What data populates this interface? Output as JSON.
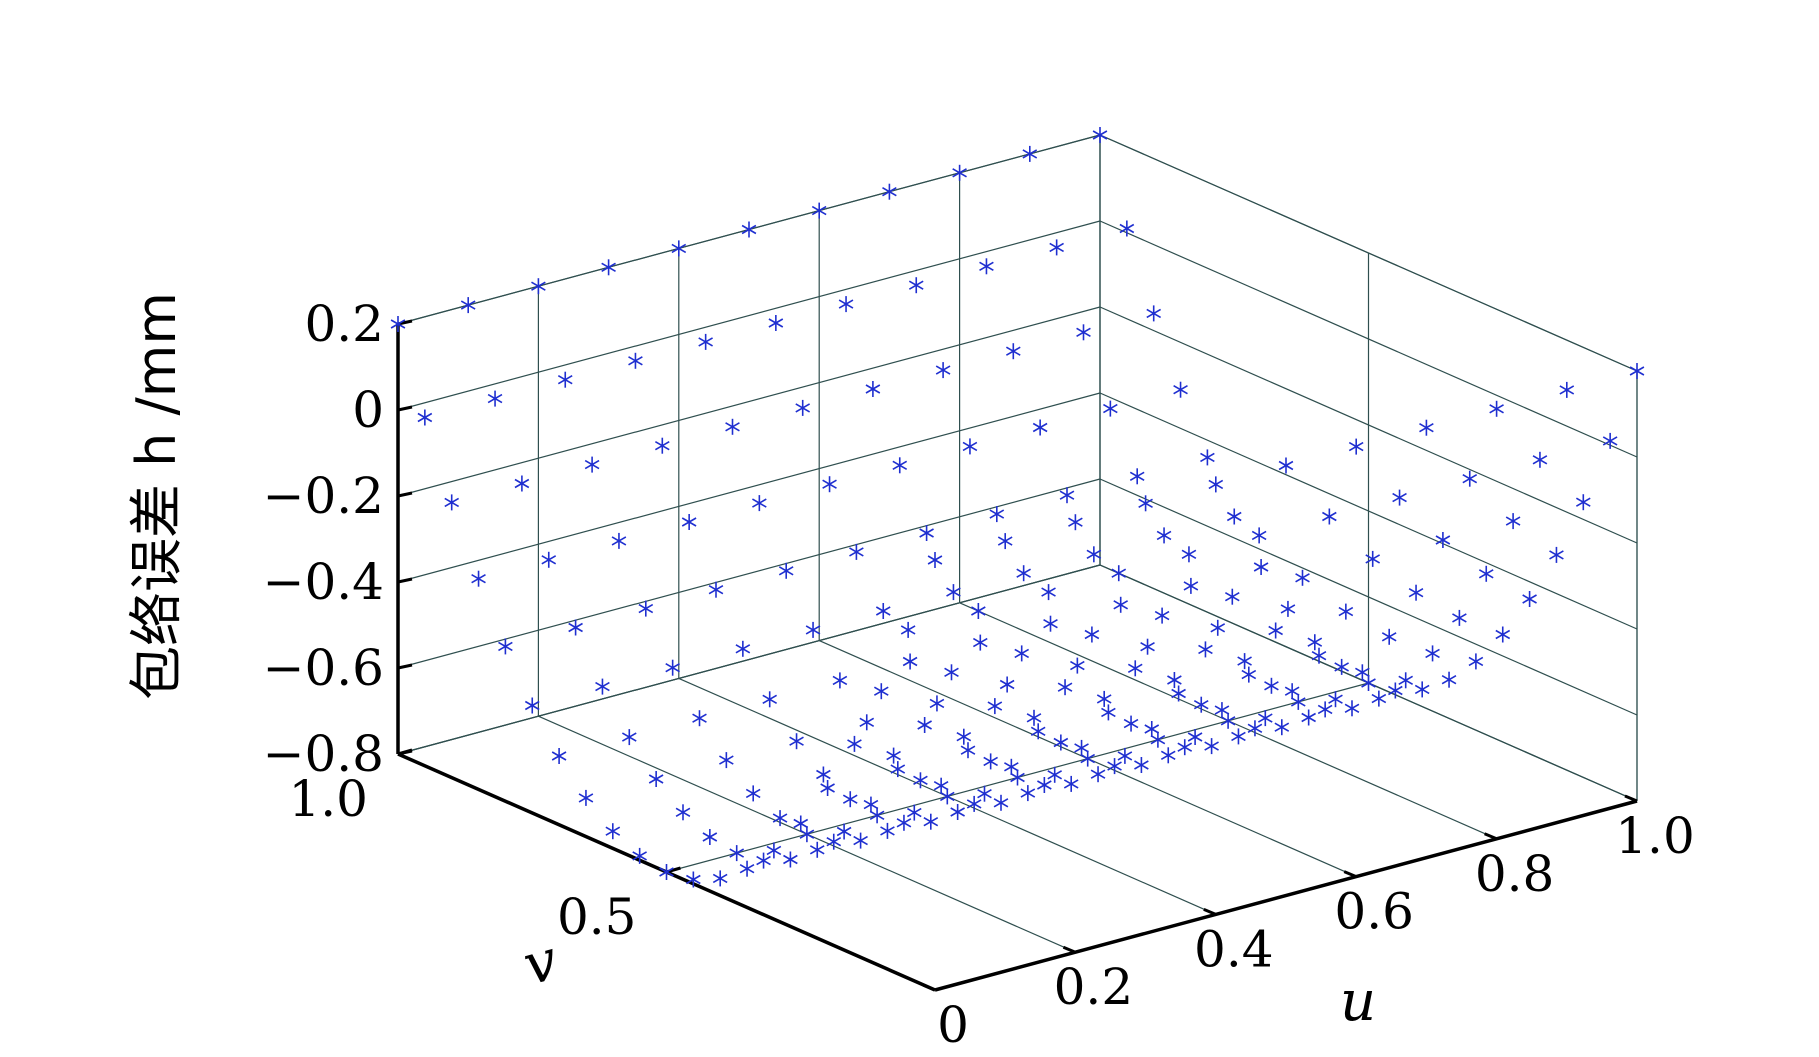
{
  "chart_data": {
    "type": "scatter",
    "subtype": "3d-scatter",
    "marker": "*",
    "marker_color": "#1f2fd0",
    "grid": true,
    "view": "azimuth rotated, elevated",
    "xlabel": "u",
    "ylabel": "v",
    "zlabel": "包络误差 h /mm",
    "xlim": [
      0,
      1
    ],
    "ylim": [
      0,
      1
    ],
    "zlim": [
      -0.8,
      0.2
    ],
    "x_ticks": [
      "0",
      "0.2",
      "0.4",
      "0.6",
      "0.8",
      "1.0"
    ],
    "y_ticks": [
      "0.5",
      "1.0"
    ],
    "z_ticks": [
      "0.2",
      "0",
      "−0.2",
      "−0.4",
      "−0.6",
      "−0.8"
    ],
    "x_tick_values": [
      0,
      0.2,
      0.4,
      0.6,
      0.8,
      1.0
    ],
    "y_tick_values": [
      0.5,
      1.0
    ],
    "z_tick_values": [
      0.2,
      0,
      -0.2,
      -0.4,
      -0.6,
      -0.8
    ],
    "grid_x": [
      0,
      0.1,
      0.2,
      0.3,
      0.4,
      0.5,
      0.6,
      0.7,
      0.8,
      0.9,
      1.0
    ],
    "grid_y": [
      0,
      0.05,
      0.1,
      0.15,
      0.2,
      0.25,
      0.3,
      0.35,
      0.4,
      0.45,
      0.5,
      0.55,
      0.6,
      0.65,
      0.7,
      0.75,
      0.8,
      0.85,
      0.9,
      0.95,
      1.0
    ],
    "surface_model": "h(u,v) ≈ 0.2 - 1.0*(1 - (2v-1)^2)",
    "surface_params": {
      "top": 0.2,
      "depth": 1.0
    }
  }
}
